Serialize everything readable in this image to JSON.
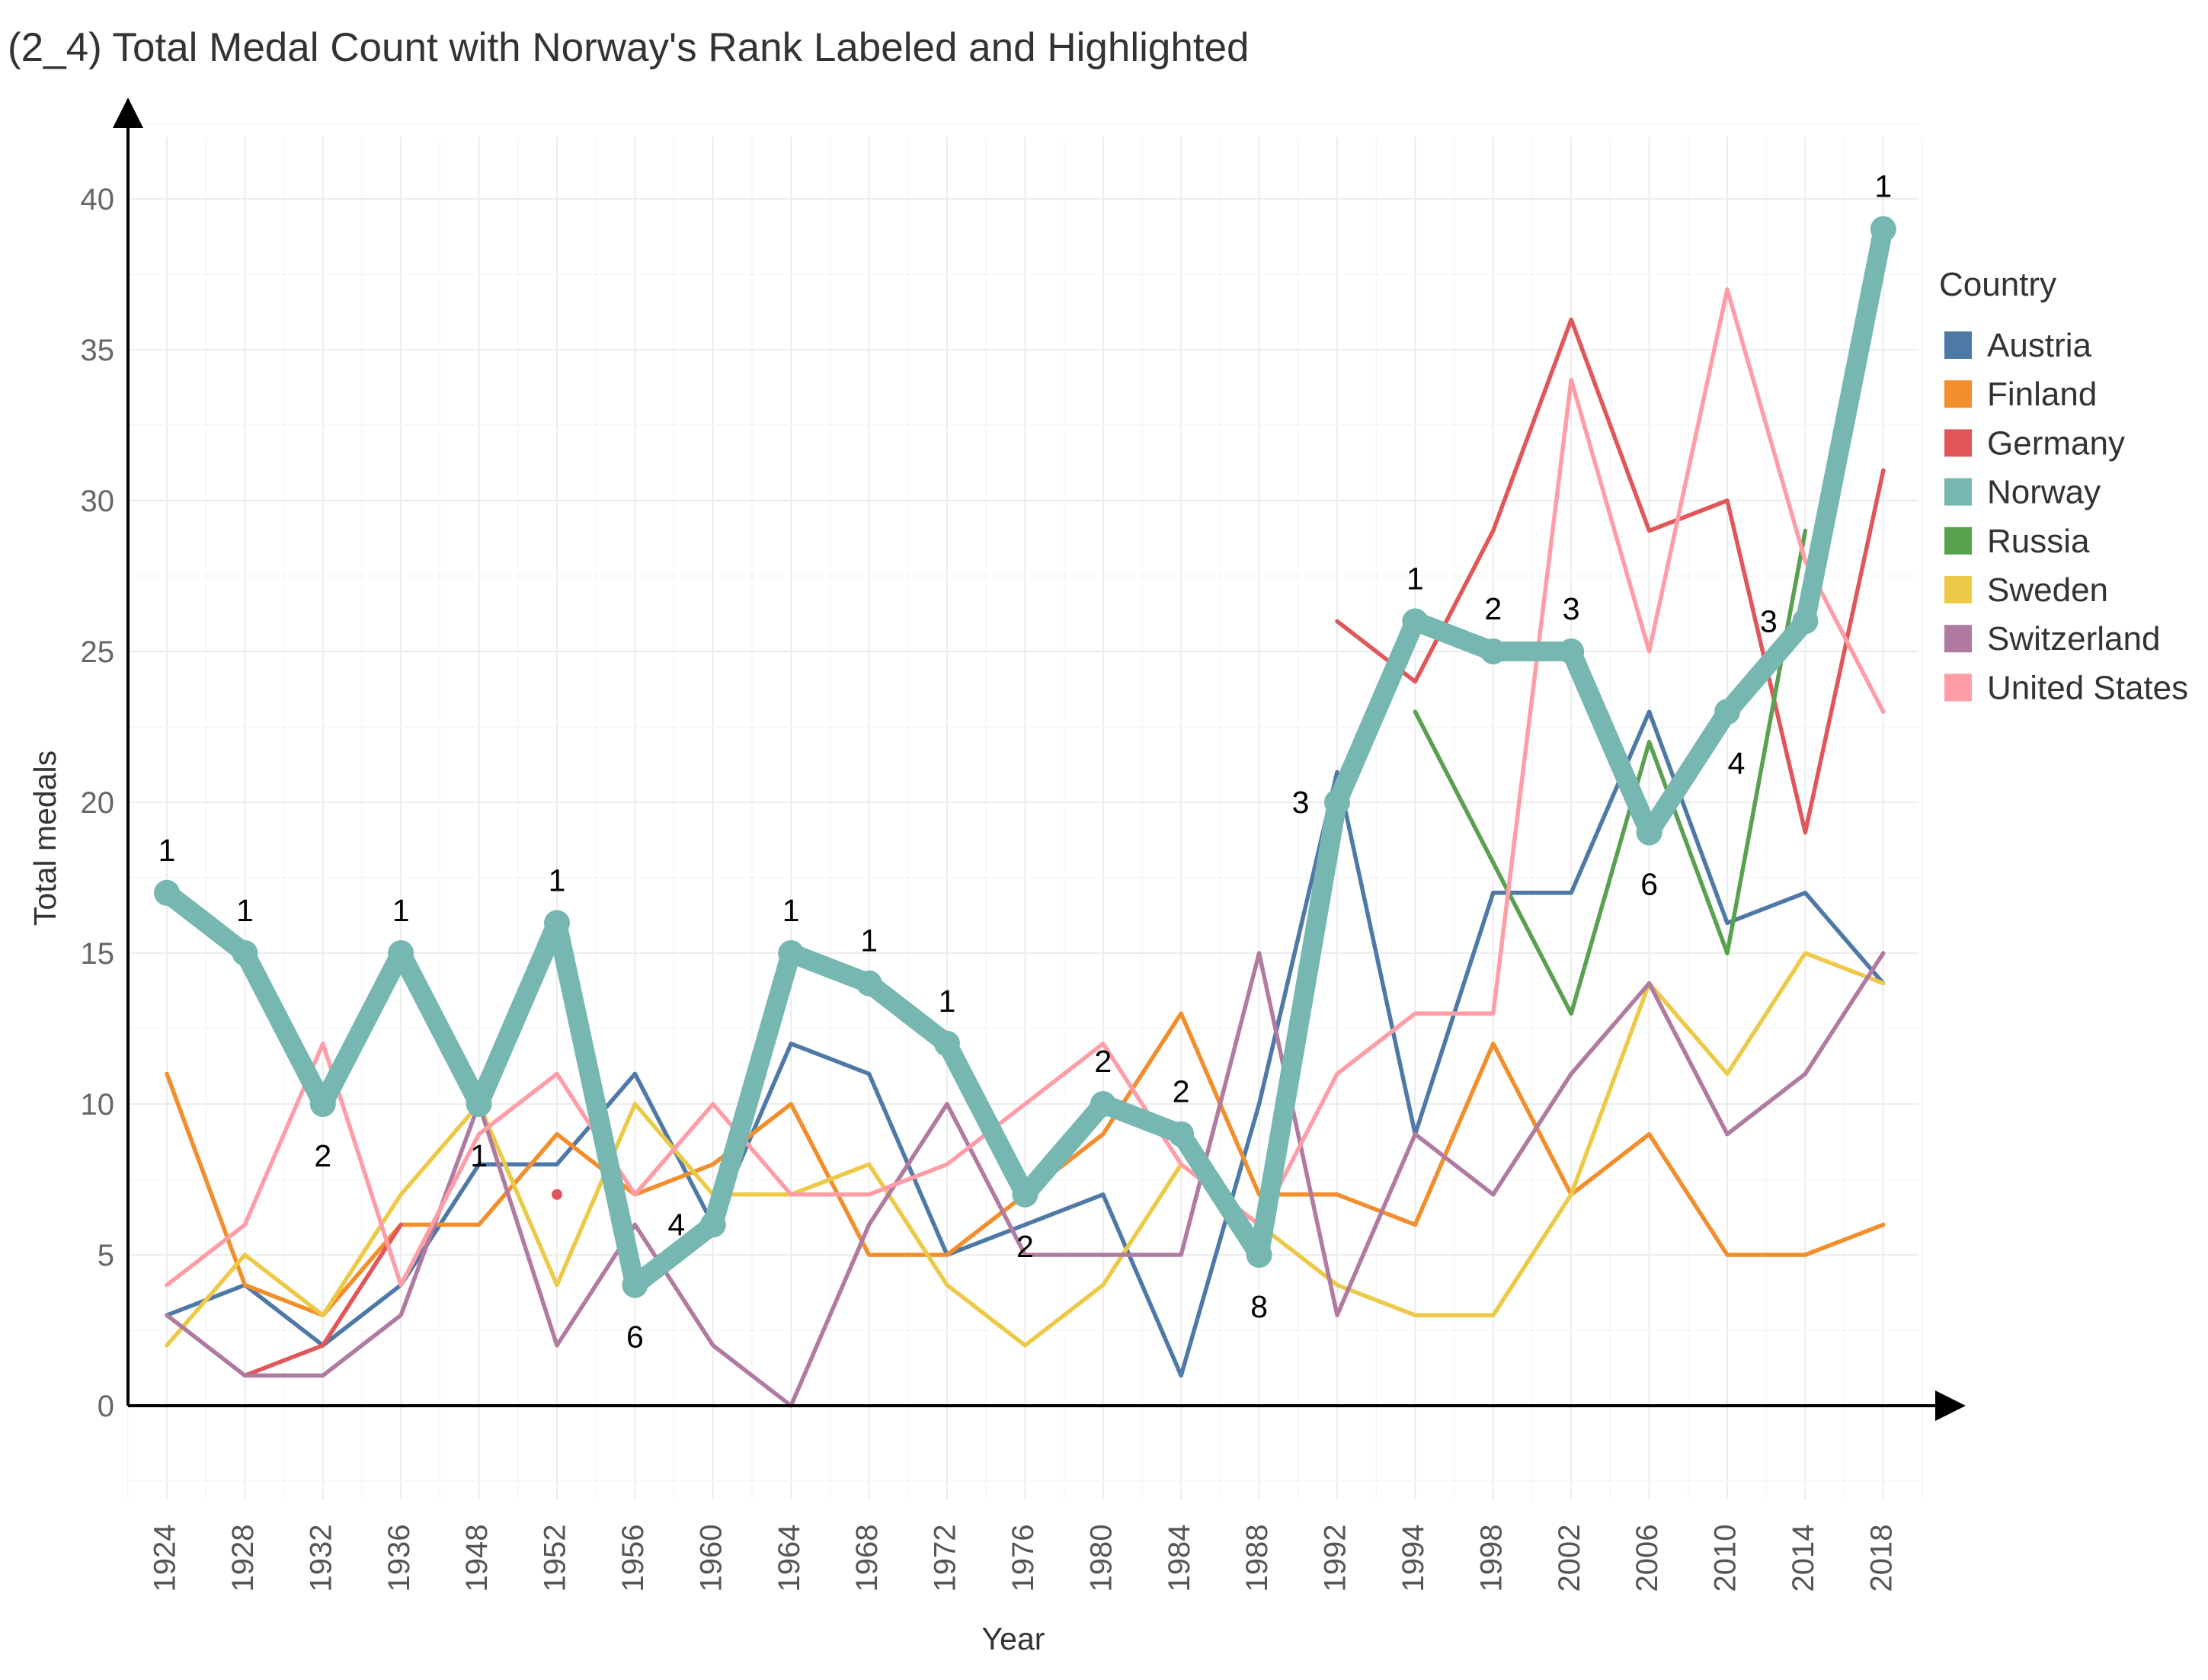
{
  "title": "(2_4) Total Medal Count  with Norway's Rank Labeled and Highlighted",
  "chart_data": {
    "type": "line",
    "title": "(2_4) Total Medal Count  with Norway's Rank Labeled and Highlighted",
    "xlabel": "Year",
    "ylabel": "Total medals",
    "categories": [
      "1924",
      "1928",
      "1932",
      "1936",
      "1948",
      "1952",
      "1956",
      "1960",
      "1964",
      "1968",
      "1972",
      "1976",
      "1980",
      "1984",
      "1988",
      "1992",
      "1994",
      "1998",
      "2002",
      "2006",
      "2010",
      "2014",
      "2018"
    ],
    "y_ticks": [
      0,
      5,
      10,
      15,
      20,
      25,
      30,
      35,
      40
    ],
    "ylim": [
      -3,
      42
    ],
    "grid": true,
    "legend": {
      "title": "Country",
      "position": "right"
    },
    "highlight_series": "Norway",
    "series": [
      {
        "name": "Austria",
        "color": "#4e79a7",
        "values": [
          3,
          4,
          2,
          4,
          8,
          8,
          11,
          6,
          12,
          11,
          5,
          6,
          7,
          1,
          10,
          21,
          9,
          17,
          17,
          23,
          16,
          17,
          14
        ]
      },
      {
        "name": "Finland",
        "color": "#f28e2b",
        "values": [
          11,
          4,
          3,
          6,
          6,
          9,
          7,
          8,
          10,
          5,
          5,
          7,
          9,
          13,
          7,
          7,
          6,
          12,
          7,
          9,
          5,
          5,
          6
        ]
      },
      {
        "name": "Germany",
        "color": "#e15759",
        "values": [
          null,
          1,
          2,
          6,
          null,
          7,
          null,
          null,
          null,
          null,
          null,
          null,
          null,
          null,
          null,
          26,
          24,
          29,
          36,
          29,
          30,
          19,
          31
        ]
      },
      {
        "name": "Norway",
        "color": "#76b7b2",
        "values": [
          17,
          15,
          10,
          15,
          10,
          16,
          4,
          6,
          15,
          14,
          12,
          7,
          10,
          9,
          5,
          20,
          26,
          25,
          25,
          19,
          23,
          26,
          39
        ],
        "ranks": [
          "1",
          "1",
          "2",
          "1",
          "1",
          "1",
          "6",
          "4",
          "1",
          "1",
          "1",
          "2",
          "2",
          "2",
          "8",
          "3",
          "1",
          "2",
          "3",
          "6",
          "4",
          "3",
          "1"
        ]
      },
      {
        "name": "Russia",
        "color": "#59a14f",
        "values": [
          null,
          null,
          null,
          null,
          null,
          null,
          null,
          null,
          null,
          null,
          null,
          null,
          null,
          null,
          null,
          null,
          23,
          18,
          13,
          22,
          15,
          29,
          null
        ]
      },
      {
        "name": "Sweden",
        "color": "#edc948",
        "values": [
          2,
          5,
          3,
          7,
          10,
          4,
          10,
          7,
          7,
          8,
          4,
          2,
          4,
          8,
          6,
          4,
          3,
          3,
          7,
          14,
          11,
          15,
          14
        ]
      },
      {
        "name": "Switzerland",
        "color": "#b07aa1",
        "values": [
          3,
          1,
          1,
          3,
          10,
          2,
          6,
          2,
          0,
          6,
          10,
          5,
          5,
          5,
          15,
          3,
          9,
          7,
          11,
          14,
          9,
          11,
          15
        ]
      },
      {
        "name": "United States",
        "color": "#ff9da7",
        "values": [
          4,
          6,
          12,
          4,
          9,
          11,
          7,
          10,
          7,
          7,
          8,
          10,
          12,
          8,
          6,
          11,
          13,
          13,
          34,
          25,
          37,
          28,
          23
        ]
      }
    ]
  }
}
